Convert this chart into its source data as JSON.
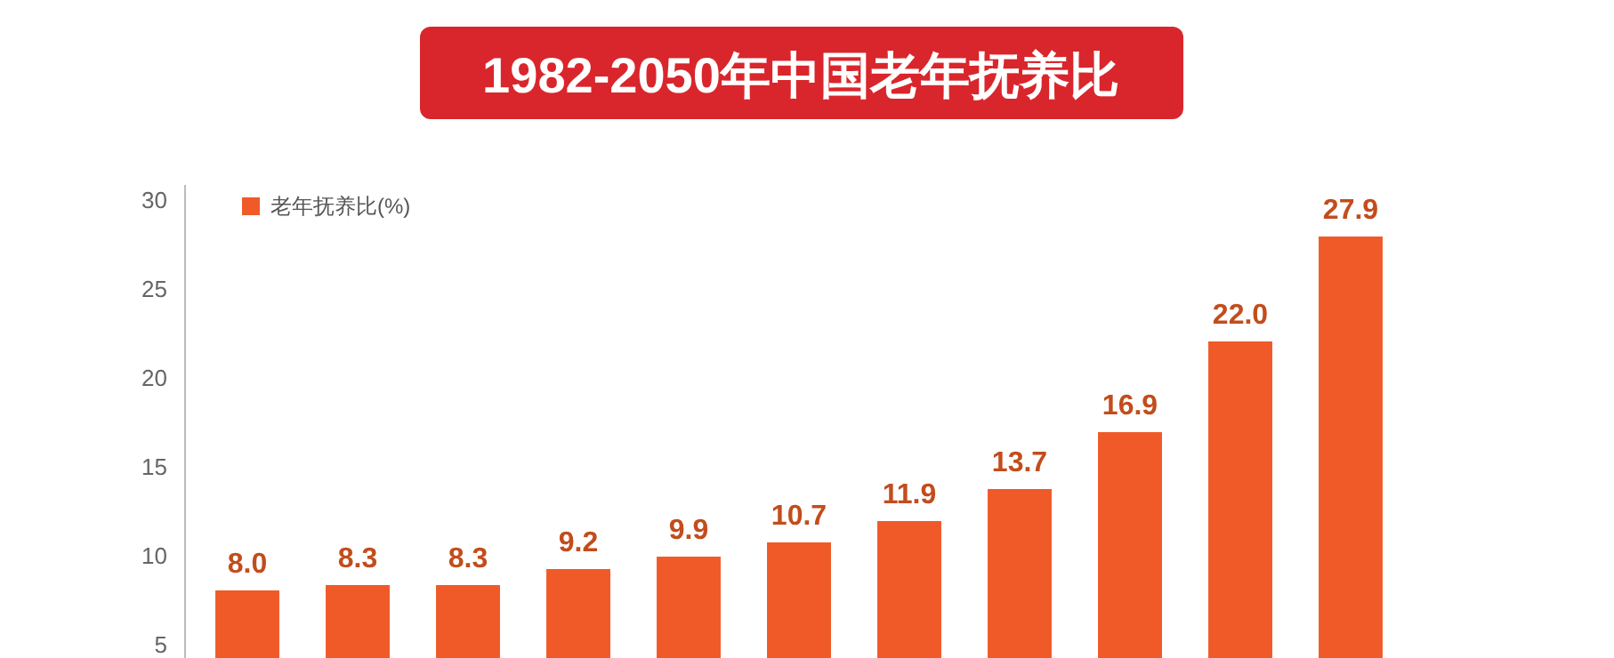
{
  "chart_data": {
    "type": "bar",
    "title": "1982-2050年中国老年抚养比",
    "categories": [
      null,
      null,
      null,
      null,
      null,
      null,
      null,
      null,
      null,
      null,
      null
    ],
    "series": [
      {
        "name": "老年抚养比(%)",
        "color": "#f05a28",
        "values": [
          8.0,
          8.3,
          8.3,
          9.2,
          9.9,
          10.7,
          11.9,
          13.7,
          16.9,
          22.0,
          27.9
        ],
        "value_labels": [
          "8.0",
          "8.3",
          "8.3",
          "9.2",
          "9.9",
          "10.7",
          "11.9",
          "13.7",
          "16.9",
          "22.0",
          "27.9"
        ]
      }
    ],
    "ylim": [
      4.2,
      30.8
    ],
    "yticks": [
      5,
      10,
      15,
      20,
      25,
      30
    ],
    "legend": "top left",
    "grid": false
  }
}
